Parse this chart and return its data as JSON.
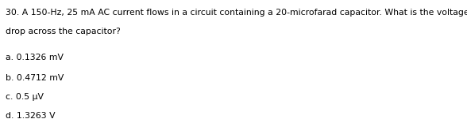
{
  "question_line1": "30. A 150-Hz, 25 mA AC current flows in a circuit containing a 20-microfarad capacitor. What is the voltage",
  "question_line2": "drop across the capacitor?",
  "options": [
    "a. 0.1326 mV",
    "b. 0.4712 mV",
    "c. 0.5 μV",
    "d. 1.3263 V"
  ],
  "font_size": 7.8,
  "text_color": "#000000",
  "background_color": "#ffffff",
  "fig_width": 5.88,
  "fig_height": 1.51,
  "dpi": 100
}
